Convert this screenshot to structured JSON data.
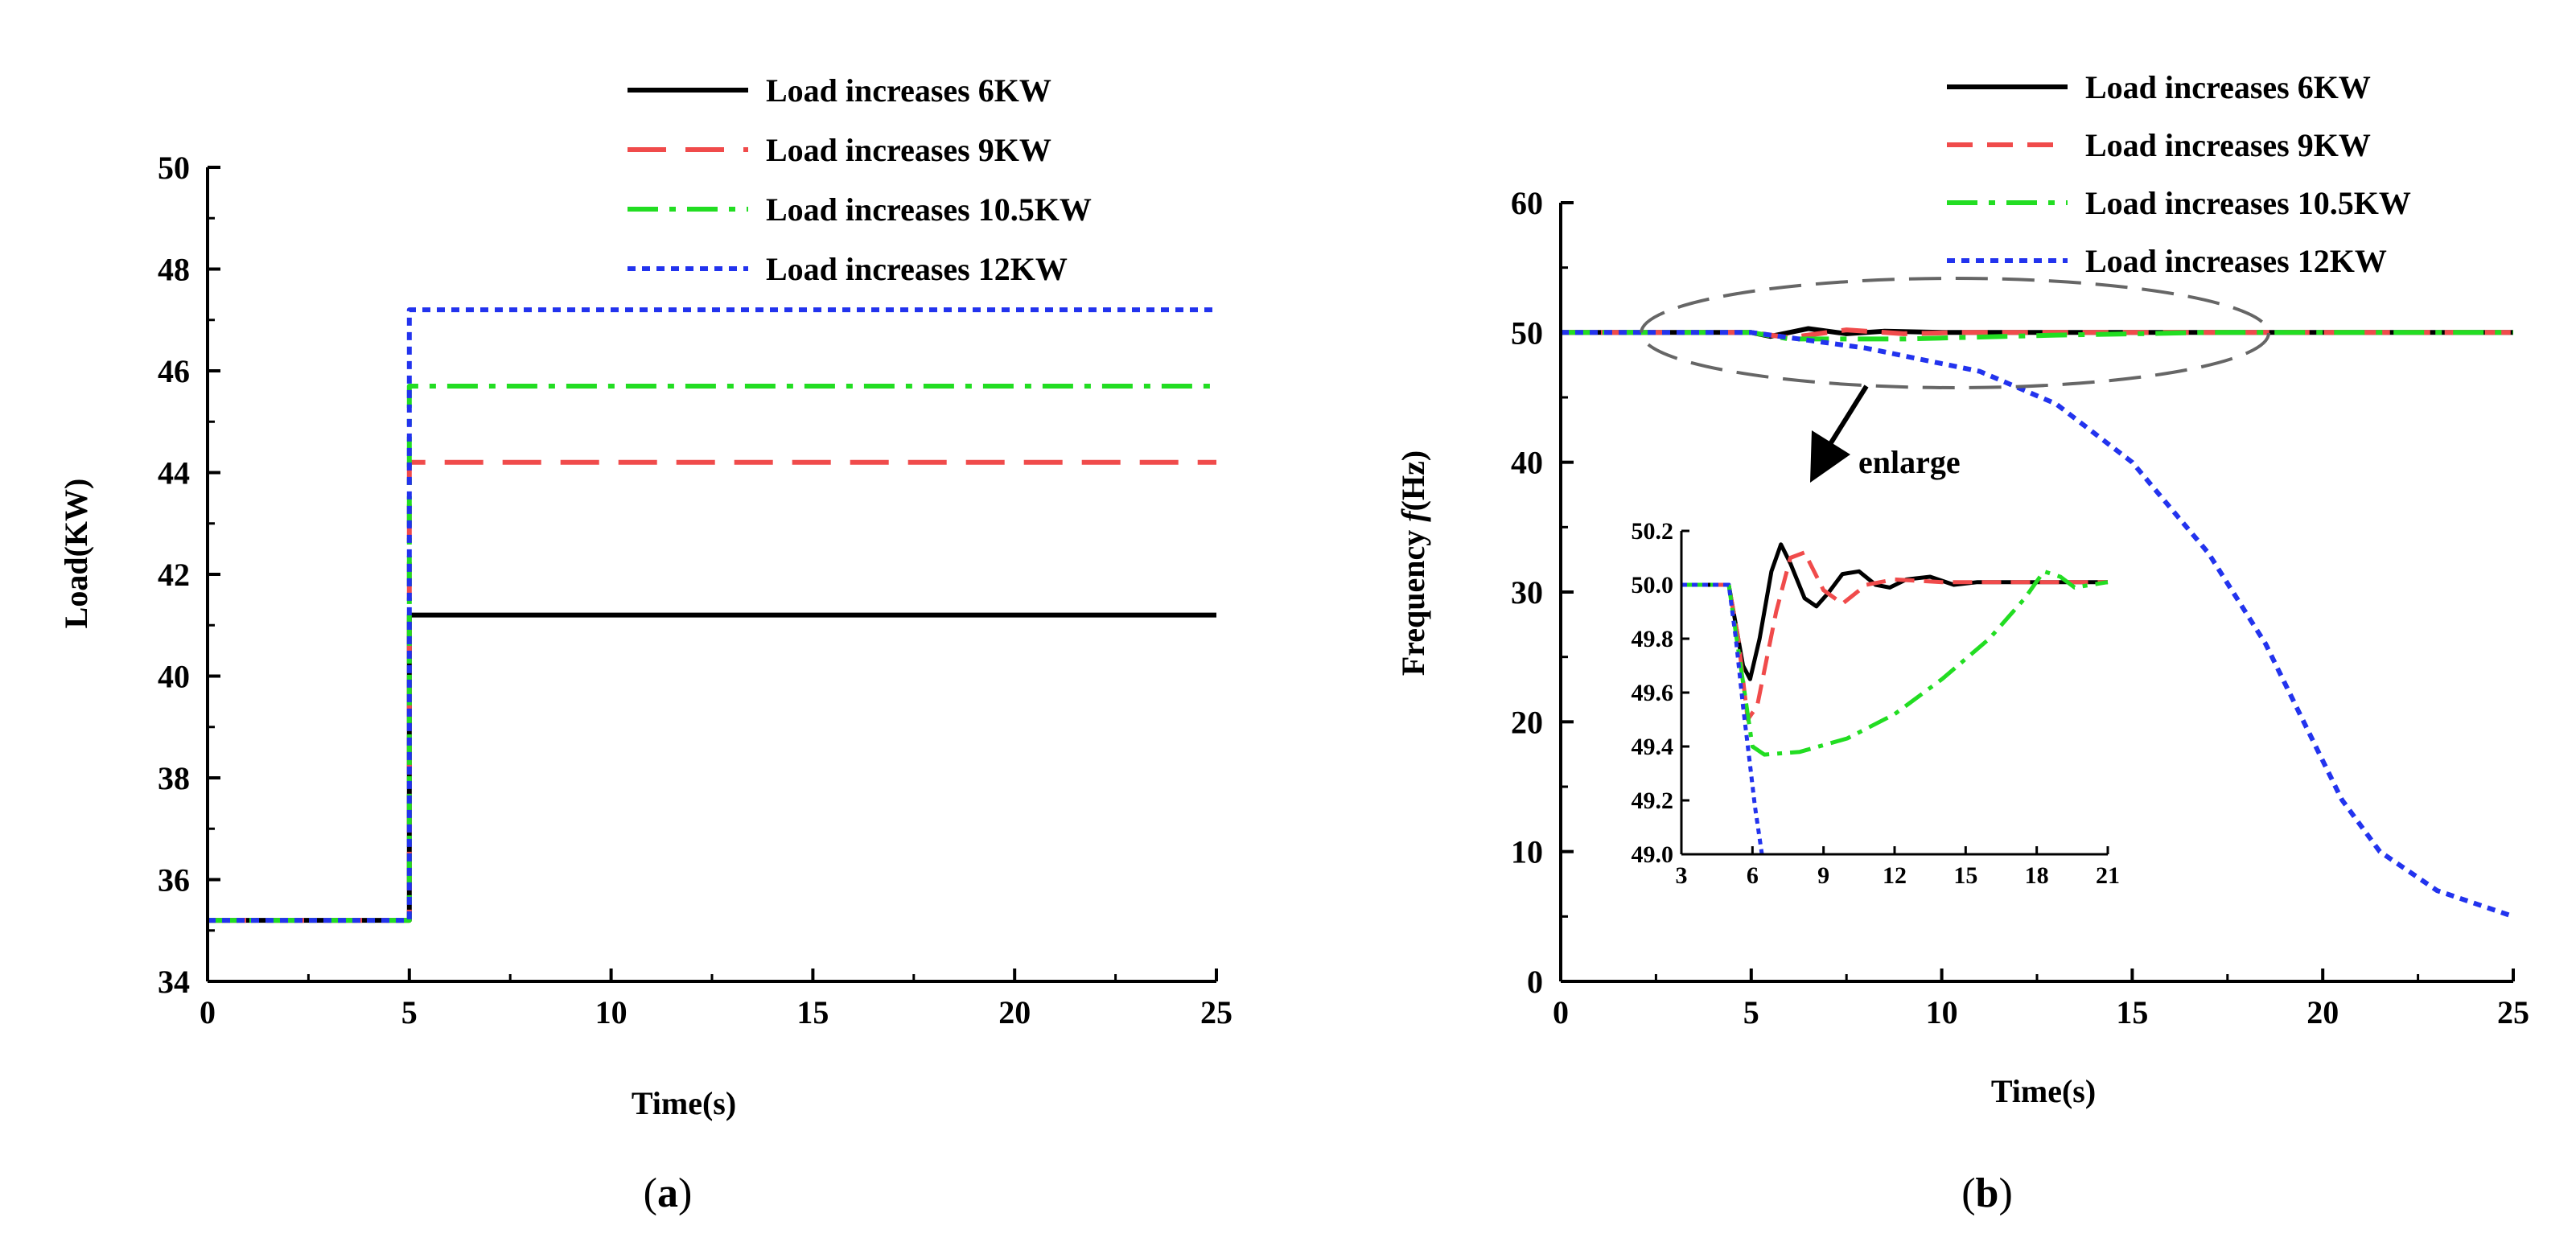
{
  "chart_data": [
    {
      "type": "line",
      "panel_label": "(a)",
      "xlabel": "Time(s)",
      "ylabel": "Load(KW)",
      "xlim": [
        0,
        25
      ],
      "ylim": [
        34,
        50
      ],
      "xticks": [
        "0",
        "5",
        "10",
        "15",
        "20",
        "25"
      ],
      "yticks": [
        "34",
        "36",
        "38",
        "40",
        "42",
        "44",
        "46",
        "48",
        "50"
      ],
      "legend_position": "top-right",
      "series": [
        {
          "name": "Load increases 6KW",
          "color": "#000000",
          "dash": "solid",
          "points": [
            [
              0,
              35.2
            ],
            [
              5,
              35.2
            ],
            [
              5,
              41.2
            ],
            [
              25,
              41.2
            ]
          ]
        },
        {
          "name": "Load increases 9KW",
          "color": "#f04b4b",
          "dash": "long-dash",
          "points": [
            [
              0,
              35.2
            ],
            [
              5,
              35.2
            ],
            [
              5,
              44.2
            ],
            [
              25,
              44.2
            ]
          ]
        },
        {
          "name": "Load increases 10.5KW",
          "color": "#22dd22",
          "dash": "dash-dot",
          "points": [
            [
              0,
              35.2
            ],
            [
              5,
              35.2
            ],
            [
              5,
              45.7
            ],
            [
              25,
              45.7
            ]
          ]
        },
        {
          "name": "Load increases 12KW",
          "color": "#2233ee",
          "dash": "dot",
          "points": [
            [
              0,
              35.2
            ],
            [
              5,
              35.2
            ],
            [
              5,
              47.2
            ],
            [
              25,
              47.2
            ]
          ]
        }
      ]
    },
    {
      "type": "line",
      "panel_label": "(b)",
      "xlabel": "Time(s)",
      "ylabel_prefix": "Frequency ",
      "ylabel_symbol": "f",
      "ylabel_suffix": "(Hz)",
      "xlim": [
        0,
        25
      ],
      "ylim": [
        0,
        60
      ],
      "xticks": [
        "0",
        "5",
        "10",
        "15",
        "20",
        "25"
      ],
      "yticks": [
        "0",
        "10",
        "20",
        "30",
        "40",
        "50",
        "60"
      ],
      "legend_position": "top-right",
      "annotation": "enlarge",
      "series": [
        {
          "name": "Load increases 6KW",
          "color": "#000000",
          "dash": "solid",
          "points": [
            [
              0,
              50
            ],
            [
              5,
              50
            ],
            [
              5.5,
              49.7
            ],
            [
              6.5,
              50.3
            ],
            [
              7.5,
              49.9
            ],
            [
              8.5,
              50.1
            ],
            [
              10,
              50
            ],
            [
              25,
              50
            ]
          ]
        },
        {
          "name": "Load increases 9KW",
          "color": "#f04b4b",
          "dash": "dash",
          "points": [
            [
              0,
              50
            ],
            [
              5,
              50
            ],
            [
              6,
              49.6
            ],
            [
              7.5,
              50.2
            ],
            [
              9,
              49.9
            ],
            [
              10.5,
              50
            ],
            [
              25,
              50
            ]
          ]
        },
        {
          "name": "Load increases 10.5KW",
          "color": "#22dd22",
          "dash": "dash-dot",
          "points": [
            [
              0,
              50
            ],
            [
              5,
              50
            ],
            [
              6,
              49.5
            ],
            [
              9,
              49.5
            ],
            [
              13,
              49.8
            ],
            [
              17,
              50
            ],
            [
              25,
              50
            ]
          ]
        },
        {
          "name": "Load increases 12KW",
          "color": "#2233ee",
          "dash": "dot",
          "points": [
            [
              0,
              50
            ],
            [
              5,
              50
            ],
            [
              8,
              48.8
            ],
            [
              11,
              47
            ],
            [
              13,
              44.5
            ],
            [
              15,
              40
            ],
            [
              17,
              33
            ],
            [
              18.5,
              26
            ],
            [
              19.5,
              20
            ],
            [
              20.5,
              14
            ],
            [
              21.5,
              10
            ],
            [
              23,
              7
            ],
            [
              24,
              6
            ],
            [
              25,
              5
            ]
          ]
        }
      ],
      "inset": {
        "xlim": [
          3,
          21
        ],
        "ylim": [
          49.0,
          50.2
        ],
        "xticks": [
          "3",
          "6",
          "9",
          "12",
          "15",
          "18",
          "21"
        ],
        "yticks": [
          "49.0",
          "49.2",
          "49.4",
          "49.6",
          "49.8",
          "50.0",
          "50.2"
        ],
        "series": [
          {
            "name": "Load increases 6KW",
            "color": "#000000",
            "dash": "solid",
            "points": [
              [
                3,
                50
              ],
              [
                5,
                50
              ],
              [
                5.2,
                49.9
              ],
              [
                5.6,
                49.7
              ],
              [
                5.9,
                49.65
              ],
              [
                6.3,
                49.8
              ],
              [
                6.8,
                50.05
              ],
              [
                7.2,
                50.15
              ],
              [
                7.6,
                50.08
              ],
              [
                8.2,
                49.95
              ],
              [
                8.7,
                49.92
              ],
              [
                9.2,
                49.97
              ],
              [
                9.8,
                50.04
              ],
              [
                10.5,
                50.05
              ],
              [
                11.2,
                50.0
              ],
              [
                11.8,
                49.99
              ],
              [
                12.5,
                50.02
              ],
              [
                13.5,
                50.03
              ],
              [
                14.5,
                50.0
              ],
              [
                15.5,
                50.01
              ],
              [
                17,
                50.01
              ],
              [
                21,
                50.01
              ]
            ]
          },
          {
            "name": "Load increases 9KW",
            "color": "#f04b4b",
            "dash": "dash",
            "points": [
              [
                3,
                50
              ],
              [
                5,
                50
              ],
              [
                5.4,
                49.8
              ],
              [
                5.8,
                49.5
              ],
              [
                6.2,
                49.55
              ],
              [
                7,
                49.9
              ],
              [
                7.6,
                50.1
              ],
              [
                8.2,
                50.12
              ],
              [
                9,
                49.98
              ],
              [
                9.8,
                49.93
              ],
              [
                10.8,
                50.0
              ],
              [
                12,
                50.02
              ],
              [
                14,
                50.01
              ],
              [
                21,
                50.01
              ]
            ]
          },
          {
            "name": "Load increases 10.5KW",
            "color": "#22dd22",
            "dash": "dash-dot",
            "points": [
              [
                3,
                50
              ],
              [
                5,
                50
              ],
              [
                5.5,
                49.7
              ],
              [
                6,
                49.4
              ],
              [
                6.5,
                49.37
              ],
              [
                8,
                49.38
              ],
              [
                10,
                49.43
              ],
              [
                12,
                49.52
              ],
              [
                14,
                49.65
              ],
              [
                16,
                49.8
              ],
              [
                17.5,
                49.95
              ],
              [
                18.3,
                50.05
              ],
              [
                19,
                50.03
              ],
              [
                19.6,
                49.99
              ],
              [
                20.3,
                50.0
              ],
              [
                21,
                50.01
              ]
            ]
          },
          {
            "name": "Load increases 12KW",
            "color": "#2233ee",
            "dash": "dot",
            "points": [
              [
                3,
                50
              ],
              [
                5,
                50
              ],
              [
                5.3,
                49.8
              ],
              [
                5.6,
                49.55
              ],
              [
                5.9,
                49.33
              ],
              [
                6.1,
                49.18
              ],
              [
                6.4,
                49.0
              ]
            ]
          }
        ]
      }
    }
  ],
  "figure_labels": {
    "a_letter": "a",
    "b_letter": "b"
  }
}
